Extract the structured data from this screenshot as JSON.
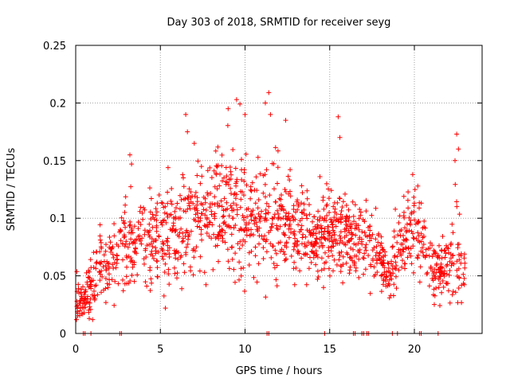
{
  "chart_data": {
    "type": "scatter",
    "title": "Day 303 of 2018, SRMTID for receiver seyg",
    "xlabel": "GPS time / hours",
    "ylabel": "SRMTID / TECUs",
    "xlim": [
      0,
      24
    ],
    "ylim": [
      0,
      0.25
    ],
    "xticks": [
      0,
      5,
      10,
      15,
      20
    ],
    "yticks": [
      0,
      0.05,
      0.1,
      0.15,
      0.2,
      0.25
    ],
    "xtick_labels": [
      "0",
      "5",
      "10",
      "15",
      "20"
    ],
    "ytick_labels": [
      "0",
      "0.05",
      "0.1",
      "0.15",
      "0.2",
      "0.25"
    ],
    "grid": true,
    "marker": "+",
    "color": "#ff0000",
    "series": [
      {
        "name": "SRMTID",
        "envelope_note": "approximate trend of the dense point cloud (hours, TECU)",
        "envelope": [
          {
            "x": 0.0,
            "center": 0.03,
            "spread": 0.012
          },
          {
            "x": 0.5,
            "center": 0.03,
            "spread": 0.012
          },
          {
            "x": 1.0,
            "center": 0.045,
            "spread": 0.015
          },
          {
            "x": 1.5,
            "center": 0.06,
            "spread": 0.018
          },
          {
            "x": 2.0,
            "center": 0.06,
            "spread": 0.02
          },
          {
            "x": 2.5,
            "center": 0.07,
            "spread": 0.022
          },
          {
            "x": 3.0,
            "center": 0.08,
            "spread": 0.025
          },
          {
            "x": 4.0,
            "center": 0.08,
            "spread": 0.025
          },
          {
            "x": 5.0,
            "center": 0.085,
            "spread": 0.028
          },
          {
            "x": 6.0,
            "center": 0.095,
            "spread": 0.03
          },
          {
            "x": 7.0,
            "center": 0.1,
            "spread": 0.03
          },
          {
            "x": 8.0,
            "center": 0.1,
            "spread": 0.032
          },
          {
            "x": 9.0,
            "center": 0.105,
            "spread": 0.035
          },
          {
            "x": 10.0,
            "center": 0.105,
            "spread": 0.035
          },
          {
            "x": 11.0,
            "center": 0.1,
            "spread": 0.035
          },
          {
            "x": 12.0,
            "center": 0.1,
            "spread": 0.03
          },
          {
            "x": 13.0,
            "center": 0.09,
            "spread": 0.028
          },
          {
            "x": 14.0,
            "center": 0.085,
            "spread": 0.025
          },
          {
            "x": 15.0,
            "center": 0.09,
            "spread": 0.025
          },
          {
            "x": 16.0,
            "center": 0.085,
            "spread": 0.025
          },
          {
            "x": 17.0,
            "center": 0.08,
            "spread": 0.022
          },
          {
            "x": 18.0,
            "center": 0.07,
            "spread": 0.022
          },
          {
            "x": 18.5,
            "center": 0.05,
            "spread": 0.015
          },
          {
            "x": 19.0,
            "center": 0.07,
            "spread": 0.025
          },
          {
            "x": 20.0,
            "center": 0.095,
            "spread": 0.025
          },
          {
            "x": 20.5,
            "center": 0.08,
            "spread": 0.02
          },
          {
            "x": 21.0,
            "center": 0.055,
            "spread": 0.015
          },
          {
            "x": 22.0,
            "center": 0.055,
            "spread": 0.02
          },
          {
            "x": 22.5,
            "center": 0.07,
            "spread": 0.03
          },
          {
            "x": 23.0,
            "center": 0.05,
            "spread": 0.015
          }
        ],
        "outliers": [
          {
            "x": 3.2,
            "y": 0.155
          },
          {
            "x": 3.3,
            "y": 0.147
          },
          {
            "x": 6.5,
            "y": 0.19
          },
          {
            "x": 6.6,
            "y": 0.175
          },
          {
            "x": 7.0,
            "y": 0.165
          },
          {
            "x": 9.0,
            "y": 0.195
          },
          {
            "x": 9.5,
            "y": 0.203
          },
          {
            "x": 9.7,
            "y": 0.199
          },
          {
            "x": 10.0,
            "y": 0.19
          },
          {
            "x": 11.2,
            "y": 0.2
          },
          {
            "x": 11.4,
            "y": 0.209
          },
          {
            "x": 11.5,
            "y": 0.19
          },
          {
            "x": 12.4,
            "y": 0.185
          },
          {
            "x": 15.5,
            "y": 0.188
          },
          {
            "x": 15.6,
            "y": 0.17
          },
          {
            "x": 19.9,
            "y": 0.138
          },
          {
            "x": 20.2,
            "y": 0.128
          },
          {
            "x": 22.5,
            "y": 0.173
          },
          {
            "x": 22.6,
            "y": 0.16
          },
          {
            "x": 22.4,
            "y": 0.15
          },
          {
            "x": 5.3,
            "y": 0.022
          },
          {
            "x": 0.8,
            "y": 0.013
          },
          {
            "x": 1.0,
            "y": 0.012
          },
          {
            "x": 18.6,
            "y": 0.033
          }
        ],
        "zero_points_x": [
          0.45,
          0.55,
          0.9,
          2.6,
          2.7,
          11.3,
          11.4,
          14.7,
          16.4,
          16.5,
          16.9,
          17.0,
          17.2,
          17.3,
          18.7,
          19.0,
          20.3,
          20.4,
          21.4
        ]
      }
    ]
  }
}
